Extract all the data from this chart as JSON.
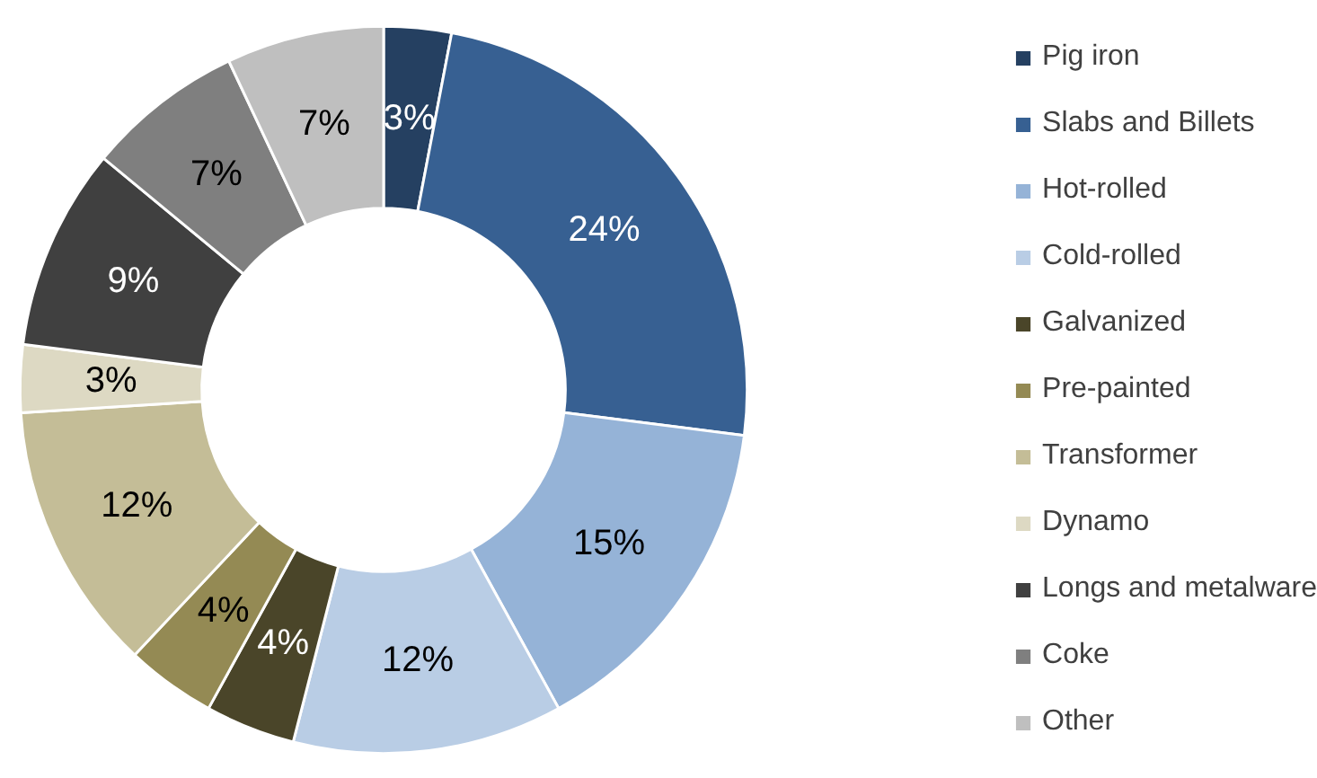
{
  "chart_data": {
    "type": "donut",
    "categories": [
      "Pig iron",
      "Slabs and Billets",
      "Hot-rolled",
      "Cold-rolled",
      "Galvanized",
      "Pre-painted",
      "Transformer",
      "Dynamo",
      "Longs and metalware",
      "Coke",
      "Other"
    ],
    "values": [
      3,
      24,
      15,
      12,
      4,
      4,
      12,
      3,
      9,
      7,
      7
    ],
    "colors": [
      "#254061",
      "#376092",
      "#95b3d7",
      "#b9cde5",
      "#4a4529",
      "#948a54",
      "#c4bd97",
      "#ddd9c3",
      "#404040",
      "#7f7f7f",
      "#bfbfbf"
    ],
    "value_labels": [
      "3%",
      "24%",
      "15%",
      "12%",
      "4%",
      "4%",
      "12%",
      "3%",
      "9%",
      "7%",
      "7%"
    ],
    "legend": "right"
  }
}
